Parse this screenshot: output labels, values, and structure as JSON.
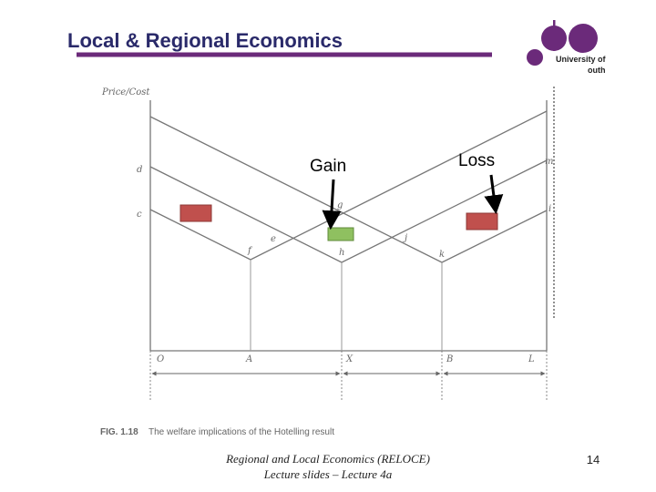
{
  "header": {
    "title": "Local & Regional Economics",
    "logo_line1": "University of",
    "logo_line2": "outh"
  },
  "diagram": {
    "y_axis_label": "Price/Cost",
    "left_labels": [
      "d",
      "c"
    ],
    "point_labels": [
      "g",
      "e",
      "f",
      "h",
      "j",
      "k"
    ],
    "right_labels": [
      "m",
      "i"
    ],
    "x_labels": [
      "O",
      "A",
      "X",
      "B",
      "L"
    ],
    "annotations": {
      "gain": "Gain",
      "loss": "Loss"
    },
    "caption": {
      "number": "FIG. 1.18",
      "text": "The welfare implications of the Hotelling result"
    }
  },
  "footer": {
    "line1": "Regional and Local Economics (RELOCE)",
    "line2": "Lecture slides – Lecture 4a",
    "page": "14"
  }
}
